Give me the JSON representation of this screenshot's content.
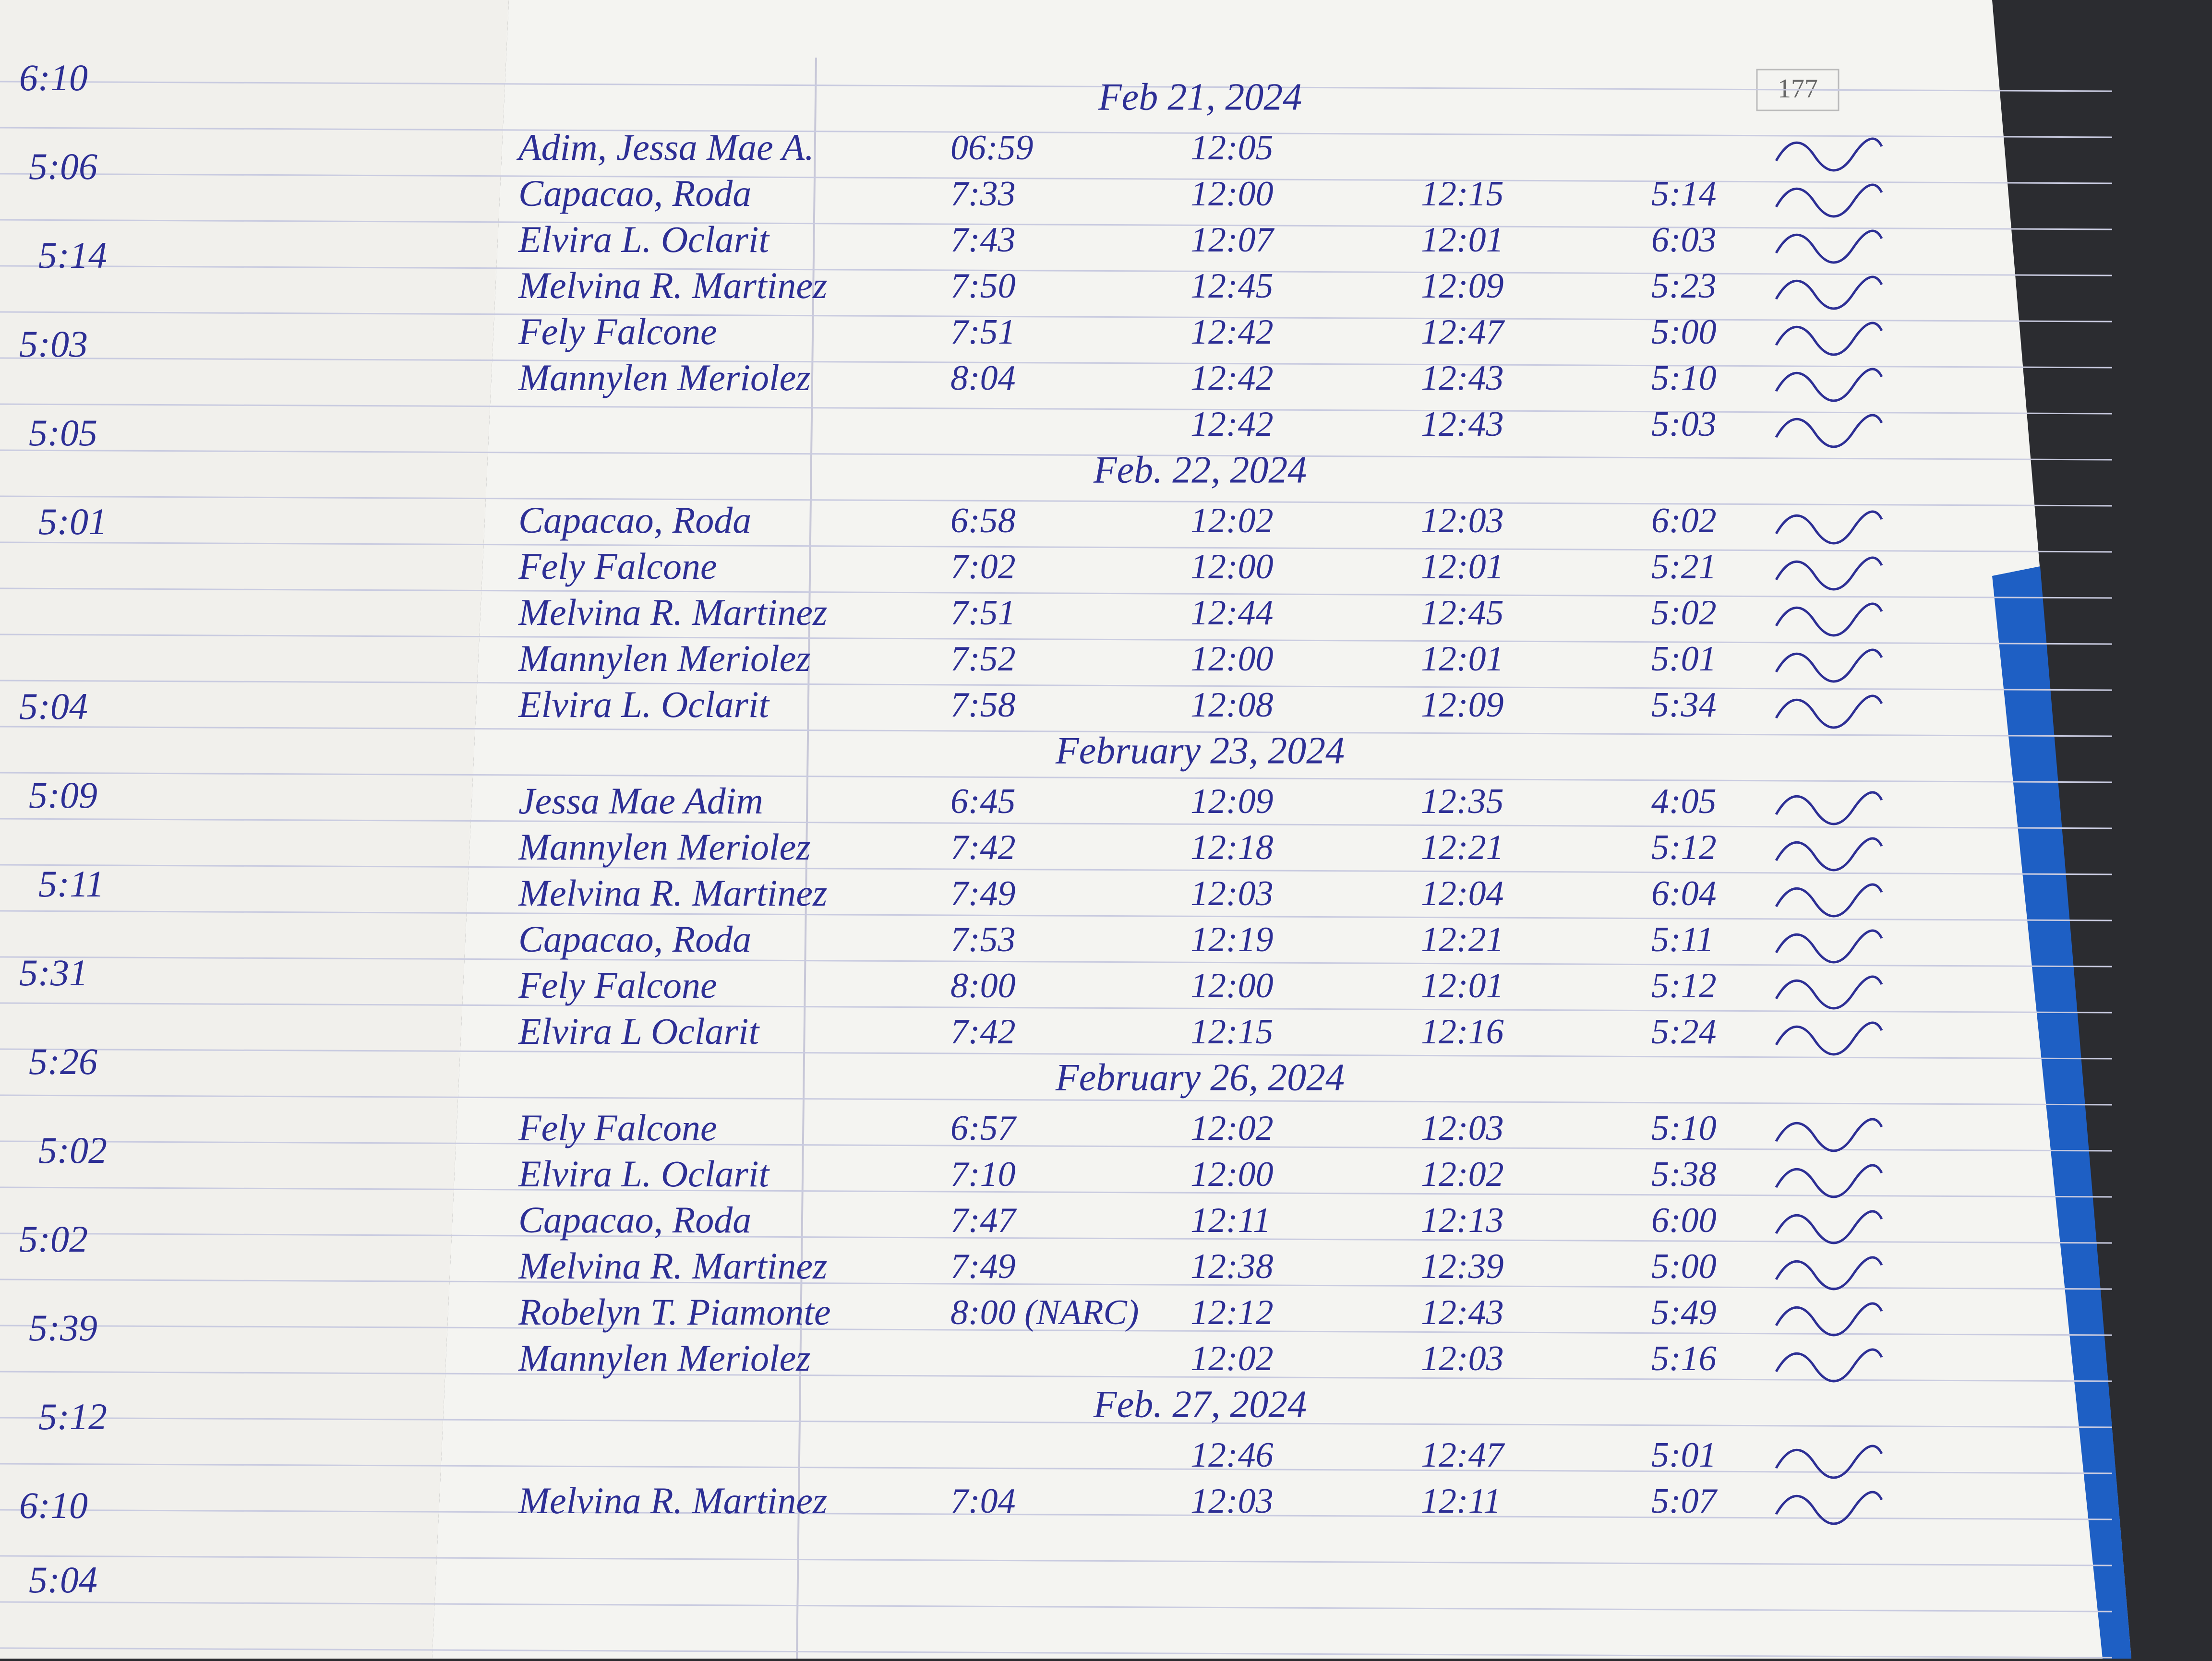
{
  "left_page": {
    "times": [
      "6:10",
      "5:06",
      "5:14",
      "5:03",
      "5:05",
      "5:01",
      "5:04",
      "5:09",
      "5:11",
      "5:31",
      "5:26",
      "5:02",
      "5:02",
      "5:39",
      "5:12",
      "6:10",
      "5:04"
    ]
  },
  "right_page": {
    "page_number": "177",
    "sections": [
      {
        "date": "Feb 21, 2024",
        "rows": [
          {
            "name": "Adim, Jessa Mae A.",
            "times": [
              "06:59",
              "12:05",
              null,
              null
            ]
          },
          {
            "name": "Capacao, Roda",
            "times": [
              "7:33",
              "12:00",
              "12:15",
              "5:14"
            ]
          },
          {
            "name": "Elvira L. Oclarit",
            "times": [
              "7:43",
              "12:07",
              "12:01",
              "6:03"
            ]
          },
          {
            "name": "Melvina R. Martinez",
            "times": [
              "7:50",
              "12:45",
              "12:09",
              "5:23"
            ]
          },
          {
            "name": "Fely Falcone",
            "times": [
              "7:51",
              "12:42",
              "12:47",
              "5:00"
            ]
          },
          {
            "name": "Mannylen Meriolez",
            "times": [
              "8:04",
              "12:42",
              "12:43",
              "5:10"
            ]
          },
          {
            "name": null,
            "times": [
              null,
              "12:42",
              "12:43",
              "5:03"
            ]
          }
        ]
      },
      {
        "date": "Feb. 22, 2024",
        "rows": [
          {
            "name": "Capacao, Roda",
            "times": [
              "6:58",
              "12:02",
              "12:03",
              "6:02"
            ]
          },
          {
            "name": "Fely Falcone",
            "times": [
              "7:02",
              "12:00",
              "12:01",
              "5:21"
            ]
          },
          {
            "name": "Melvina R. Martinez",
            "times": [
              "7:51",
              "12:44",
              "12:45",
              "5:02"
            ]
          },
          {
            "name": "Mannylen Meriolez",
            "times": [
              "7:52",
              "12:00",
              "12:01",
              "5:01"
            ]
          },
          {
            "name": "Elvira L. Oclarit",
            "times": [
              "7:58",
              "12:08",
              "12:09",
              "5:34"
            ]
          }
        ]
      },
      {
        "date": "February 23, 2024",
        "rows": [
          {
            "name": "Jessa Mae Adim",
            "times": [
              "6:45",
              "12:09",
              "12:35",
              "4:05"
            ]
          },
          {
            "name": "Mannylen Meriolez",
            "times": [
              "7:42",
              "12:18",
              "12:21",
              "5:12"
            ]
          },
          {
            "name": "Melvina R. Martinez",
            "times": [
              "7:49",
              "12:03",
              "12:04",
              "6:04"
            ]
          },
          {
            "name": "Capacao, Roda",
            "times": [
              "7:53",
              "12:19",
              "12:21",
              "5:11"
            ]
          },
          {
            "name": "Fely Falcone",
            "times": [
              "8:00",
              "12:00",
              "12:01",
              "5:12"
            ]
          },
          {
            "name": "Elvira L Oclarit",
            "times": [
              "7:42",
              "12:15",
              "12:16",
              "5:24"
            ]
          }
        ]
      },
      {
        "date": "February 26, 2024",
        "rows": [
          {
            "name": "Fely Falcone",
            "times": [
              "6:57",
              "12:02",
              "12:03",
              "5:10"
            ]
          },
          {
            "name": "Elvira L. Oclarit",
            "times": [
              "7:10",
              "12:00",
              "12:02",
              "5:38"
            ]
          },
          {
            "name": "Capacao, Roda",
            "times": [
              "7:47",
              "12:11",
              "12:13",
              "6:00"
            ]
          },
          {
            "name": "Melvina R. Martinez",
            "times": [
              "7:49",
              "12:38",
              "12:39",
              "5:00"
            ]
          },
          {
            "name": "Robelyn T. Piamonte",
            "times": [
              "8:00 (NARC)",
              "12:12",
              "12:43",
              "5:49"
            ]
          },
          {
            "name": "Mannylen Meriolez",
            "times": [
              null,
              "12:02",
              "12:03",
              "5:16"
            ]
          }
        ]
      },
      {
        "date": "Feb. 27, 2024",
        "rows": [
          {
            "name": null,
            "times": [
              null,
              "12:46",
              "12:47",
              "5:01"
            ]
          },
          {
            "name": "Melvina R. Martinez",
            "times": [
              "7:04",
              "12:03",
              "12:11",
              "5:07"
            ]
          }
        ]
      }
    ]
  }
}
